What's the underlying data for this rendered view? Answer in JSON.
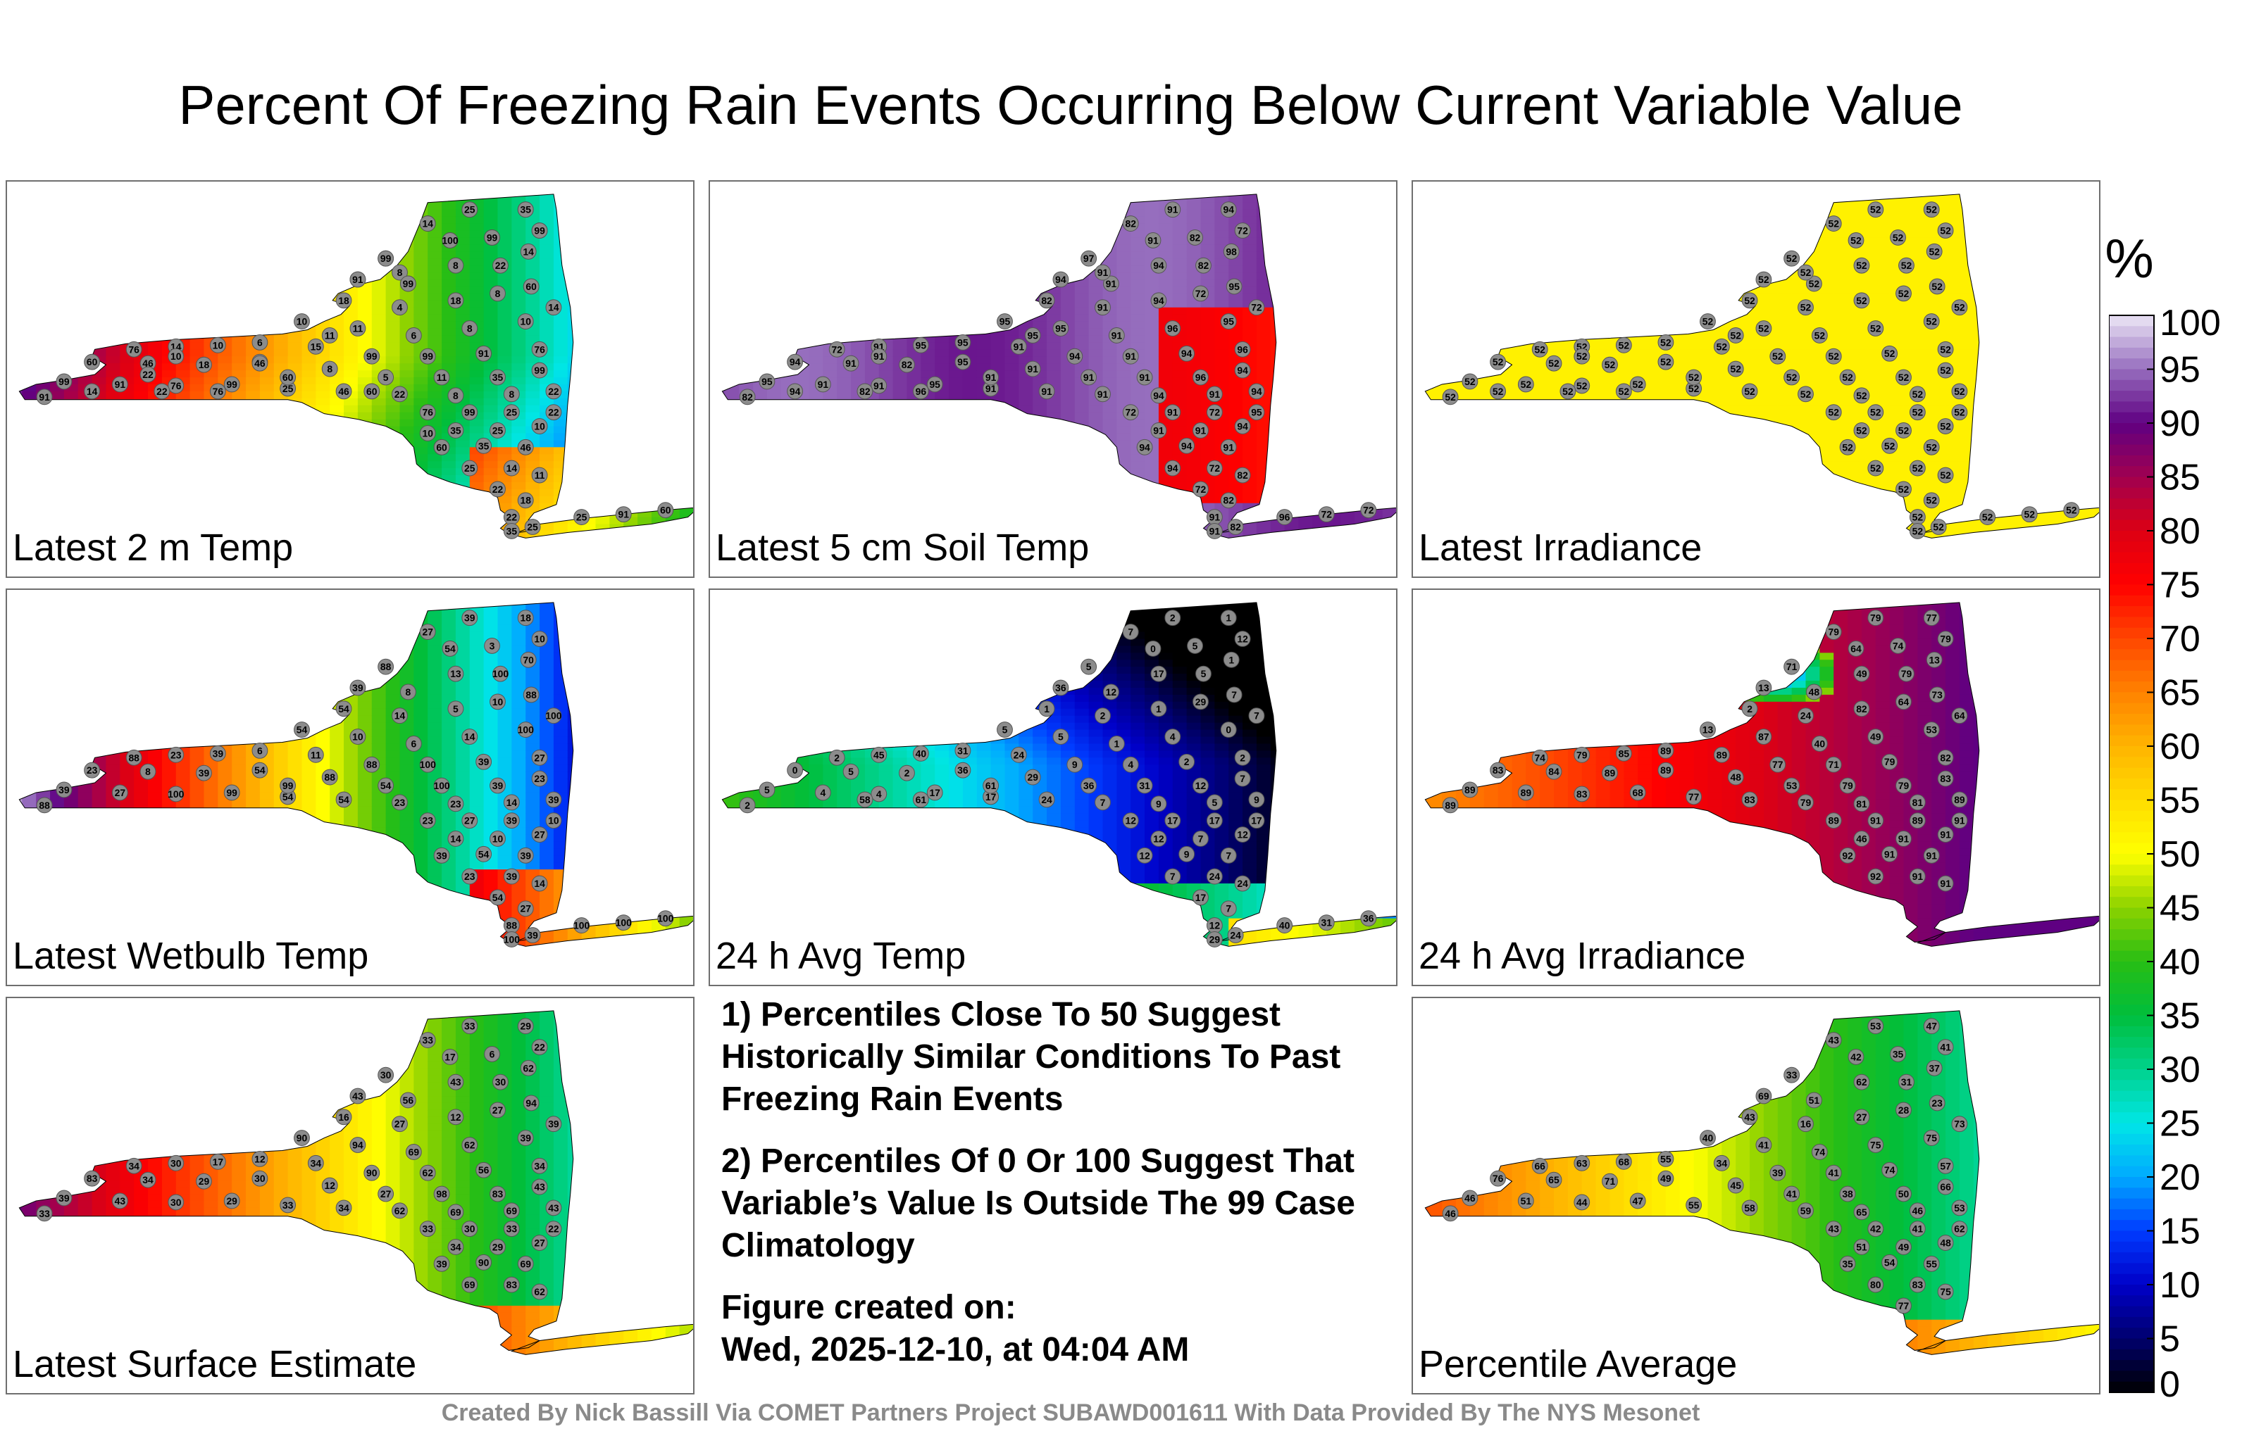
{
  "title": "Percent Of Freezing Rain Events Occurring Below Current Variable Value",
  "colorbar": {
    "unit": "%",
    "ticks": [
      100,
      95,
      90,
      85,
      80,
      75,
      70,
      65,
      60,
      55,
      50,
      45,
      40,
      35,
      30,
      25,
      20,
      15,
      10,
      5,
      0
    ]
  },
  "panels": [
    {
      "label": "Latest 2 m Temp",
      "field": "warm_gradient",
      "stations": [
        25,
        33,
        18,
        3,
        46,
        22,
        91,
        46,
        60,
        8,
        22,
        14,
        18,
        4,
        18,
        8,
        60,
        10,
        11,
        6,
        8,
        10,
        14,
        76,
        14,
        10,
        6,
        15,
        99,
        99,
        91,
        76,
        60,
        46,
        18,
        22,
        8,
        5,
        11,
        35,
        99,
        99,
        91,
        76,
        99,
        25,
        46,
        22,
        8,
        8,
        22,
        91,
        76,
        99,
        25,
        22,
        35,
        25,
        10,
        60,
        35,
        46,
        25,
        14,
        11,
        22,
        18,
        22,
        25,
        35,
        25,
        91,
        60,
        60,
        76,
        22,
        14,
        11,
        10,
        8,
        46,
        60,
        10,
        22,
        14,
        25,
        35,
        99,
        99,
        100,
        99,
        91,
        99
      ]
    },
    {
      "label": "Latest 5 cm Soil Temp",
      "field": "purple_red",
      "stations": [
        82,
        91,
        94,
        72,
        82,
        91,
        97,
        94,
        91,
        94,
        82,
        98,
        82,
        91,
        94,
        72,
        95,
        95,
        95,
        91,
        96,
        95,
        72,
        72,
        91,
        95,
        95,
        91,
        94,
        91,
        94,
        96,
        94,
        91,
        82,
        95,
        91,
        91,
        91,
        96,
        94,
        95,
        91,
        91,
        95,
        91,
        91,
        91,
        94,
        91,
        94,
        82,
        72,
        91,
        72,
        95,
        91,
        91,
        94,
        94,
        94,
        91,
        94,
        72,
        82,
        72,
        82,
        91,
        82,
        91,
        96,
        72,
        72,
        91,
        96,
        82,
        94,
        95,
        91,
        91
      ]
    },
    {
      "label": "Latest Irradiance",
      "field": "flat52",
      "stations": [
        52,
        52,
        52,
        52,
        52,
        52,
        52,
        52,
        52,
        52,
        52,
        52,
        52,
        52,
        52,
        52,
        52,
        52,
        52,
        52,
        52,
        52,
        52,
        52,
        52,
        52,
        52,
        52,
        52,
        52,
        52,
        52,
        52,
        52,
        52,
        52,
        52,
        52,
        52,
        52,
        52,
        52,
        52,
        52,
        52,
        52,
        52,
        52,
        52,
        52,
        52,
        52,
        52,
        52,
        52,
        52,
        52,
        52,
        52,
        52,
        52,
        52,
        52,
        52,
        52,
        52,
        52,
        52,
        52,
        52,
        52,
        52,
        52,
        52,
        52,
        52,
        52,
        52,
        52,
        52
      ]
    },
    {
      "label": "Latest Wetbulb Temp",
      "field": "wetbulb",
      "stations": [
        27,
        39,
        18,
        10,
        3,
        54,
        88,
        39,
        8,
        13,
        100,
        70,
        54,
        14,
        5,
        10,
        88,
        54,
        10,
        6,
        14,
        100,
        100,
        88,
        23,
        39,
        6,
        11,
        88,
        100,
        39,
        27,
        23,
        8,
        39,
        54,
        88,
        54,
        100,
        39,
        23,
        39,
        27,
        100,
        99,
        54,
        54,
        23,
        23,
        14,
        39,
        88,
        23,
        27,
        39,
        10,
        14,
        10,
        27,
        39,
        54,
        39,
        23,
        39,
        14,
        54,
        27,
        88,
        39,
        100,
        100,
        100,
        100,
        99
      ]
    },
    {
      "label": "24 h Avg Temp",
      "field": "cold",
      "stations": [
        7,
        2,
        1,
        12,
        5,
        0,
        5,
        36,
        12,
        17,
        5,
        1,
        1,
        2,
        1,
        29,
        7,
        5,
        5,
        1,
        4,
        0,
        7,
        2,
        45,
        40,
        31,
        24,
        9,
        4,
        2,
        2,
        0,
        5,
        2,
        36,
        29,
        36,
        31,
        12,
        7,
        5,
        4,
        4,
        17,
        17,
        24,
        7,
        9,
        5,
        9,
        2,
        12,
        17,
        17,
        17,
        12,
        7,
        12,
        12,
        9,
        7,
        7,
        24,
        24,
        17,
        7,
        12,
        24,
        29,
        40,
        31,
        36,
        61,
        61,
        58
      ]
    },
    {
      "label": "24 h Avg Irradiance",
      "field": "irr_avg",
      "stations": [
        79,
        79,
        77,
        79,
        74,
        64,
        71,
        13,
        48,
        49,
        79,
        13,
        2,
        24,
        82,
        64,
        73,
        13,
        87,
        40,
        49,
        53,
        64,
        74,
        79,
        85,
        89,
        89,
        77,
        71,
        79,
        82,
        83,
        84,
        89,
        89,
        48,
        53,
        79,
        79,
        83,
        89,
        89,
        83,
        68,
        77,
        83,
        79,
        81,
        81,
        89,
        89,
        89,
        91,
        89,
        91,
        46,
        91,
        91,
        92,
        91,
        91,
        92,
        91,
        91
      ]
    },
    {
      "label": "Latest Surface Estimate",
      "field": "surface",
      "stations": [
        33,
        33,
        29,
        22,
        6,
        17,
        30,
        43,
        56,
        43,
        30,
        62,
        16,
        27,
        12,
        27,
        94,
        90,
        94,
        69,
        62,
        39,
        39,
        34,
        30,
        17,
        12,
        34,
        90,
        62,
        56,
        34,
        83,
        34,
        29,
        30,
        12,
        27,
        98,
        83,
        43,
        39,
        43,
        30,
        29,
        33,
        34,
        62,
        69,
        69,
        43,
        33,
        33,
        30,
        33,
        22,
        34,
        29,
        27,
        39,
        90,
        69,
        69,
        83,
        62
      ]
    },
    {
      "label": "Percentile Average",
      "field": "average",
      "stations": [
        43,
        53,
        47,
        41,
        35,
        42,
        33,
        69,
        51,
        62,
        31,
        37,
        43,
        16,
        27,
        28,
        23,
        40,
        41,
        74,
        75,
        75,
        73,
        66,
        63,
        68,
        55,
        34,
        39,
        41,
        74,
        57,
        76,
        65,
        71,
        49,
        45,
        41,
        38,
        50,
        66,
        46,
        51,
        44,
        47,
        55,
        58,
        59,
        65,
        46,
        53,
        46,
        43,
        42,
        41,
        62,
        51,
        49,
        48,
        35,
        54,
        55,
        80,
        83,
        75,
        77
      ]
    }
  ],
  "notes": [
    "1) Percentiles Close To 50 Suggest Historically Similar Conditions To Past Freezing Rain Events",
    "2) Percentiles Of 0 Or 100 Suggest That Variable’s Value Is Outside The 99 Case Climatology",
    "Figure created on:",
    "Wed, 2025-12-10, at 04:04 AM"
  ],
  "credit": "Created By Nick Bassill Via COMET Partners Project SUBAWD001611 With Data Provided By The NYS Mesonet"
}
